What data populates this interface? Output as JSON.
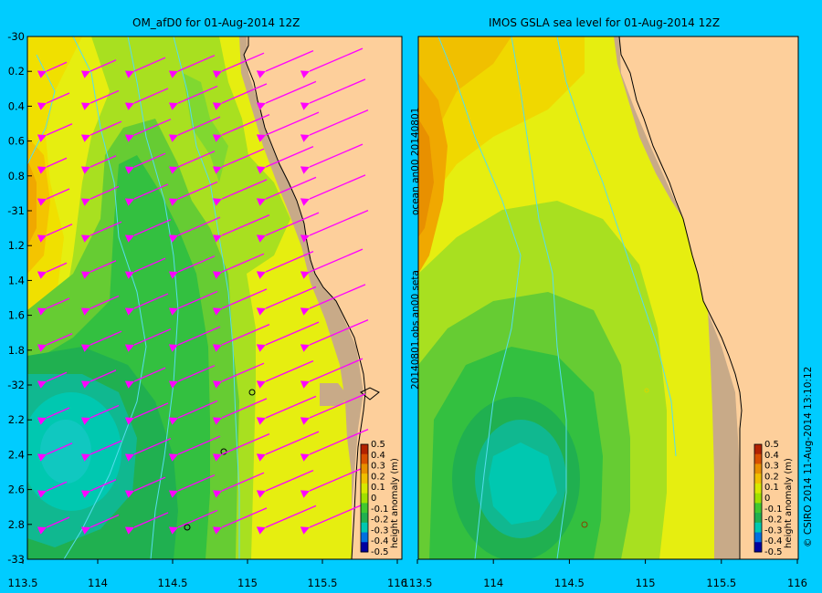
{
  "left_panel": {
    "title": "OM_afD0 for 01-Aug-2014 12Z",
    "y_ticks": [
      "-30",
      "0.2",
      "0.4",
      "0.6",
      "0.8",
      "-31",
      "1.2",
      "1.4",
      "1.6",
      "1.8",
      "-32",
      "2.2",
      "2.4",
      "2.6",
      "2.8",
      "-33"
    ],
    "x_ticks": [
      "113.5",
      "114",
      "114.5",
      "115",
      "115.5",
      "116"
    ],
    "side_text": "20140801.obs  an00  seta"
  },
  "right_panel": {
    "title": "IMOS GSLA sea level  for 01-Aug-2014 12Z",
    "x_ticks": [
      "113.5",
      "114",
      "114.5",
      "115",
      "115.5",
      "116"
    ],
    "side_text_top": "ocean  an00  20140801",
    "credit": "© CSIRO 2014   11-Aug-2014 13:10:12"
  },
  "colorbar": {
    "label": "height anomaly (m)",
    "ticks": [
      "0.5",
      "0.4",
      "0.3",
      "0.2",
      "0.1",
      "0",
      "-0.1",
      "-0.2",
      "-0.3",
      "-0.4",
      "-0.5"
    ],
    "colors": [
      "#b22200",
      "#d85000",
      "#e89000",
      "#f0c000",
      "#d8e800",
      "#a0e000",
      "#40c830",
      "#20b050",
      "#00c8b0",
      "#0070e0",
      "#0000a0"
    ]
  },
  "colors": {
    "background": "#00ccff",
    "land": "#fdcf9b",
    "shelf": "#c8aa88",
    "arrows": "#ff00ff",
    "rivers": "#55ddee"
  }
}
